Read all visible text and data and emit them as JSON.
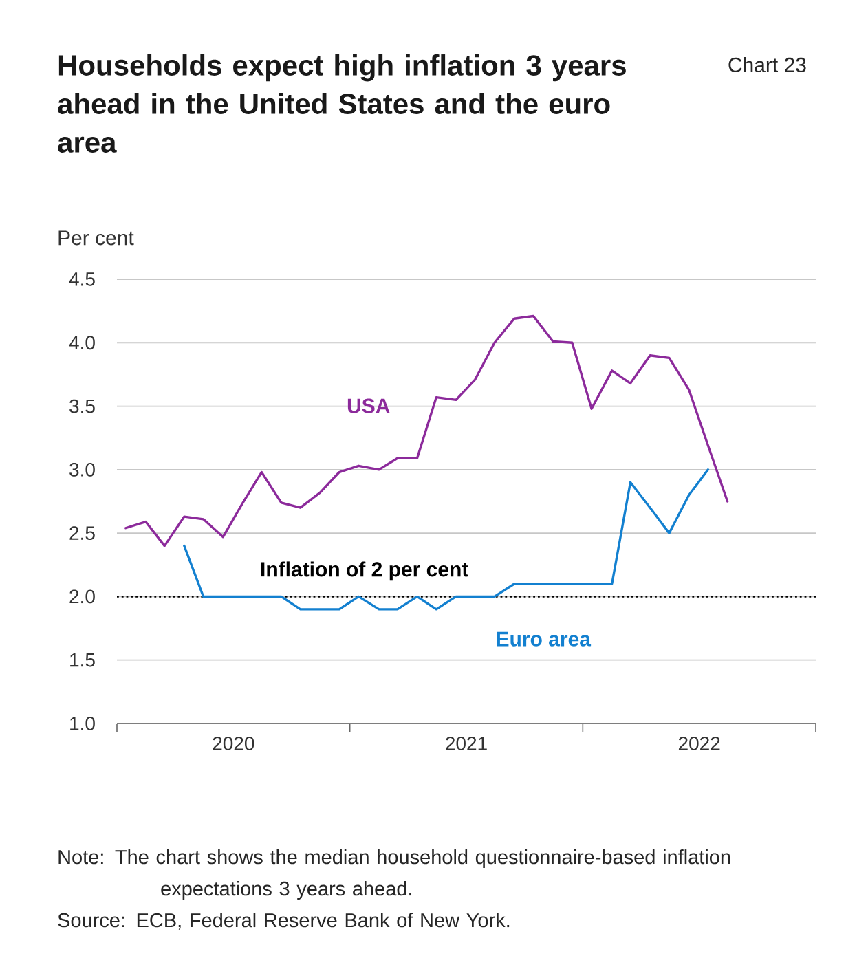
{
  "chart_data": {
    "type": "line",
    "title": "Households expect high inflation 3 years ahead in the United States and the euro area",
    "subtitle": "Chart 23",
    "ylabel": "Per cent",
    "series": [
      {
        "name": "USA",
        "color": "#8c2a9b",
        "x": [
          "2020-01-15",
          "2020-02-15",
          "2020-03-15",
          "2020-04-15",
          "2020-05-15",
          "2020-06-15",
          "2020-07-15",
          "2020-08-15",
          "2020-09-15",
          "2020-10-15",
          "2020-11-15",
          "2020-12-15",
          "2021-01-15",
          "2021-02-15",
          "2021-03-15",
          "2021-04-15",
          "2021-05-15",
          "2021-06-15",
          "2021-07-15",
          "2021-08-15",
          "2021-09-15",
          "2021-10-15",
          "2021-11-15",
          "2021-12-15",
          "2022-01-15",
          "2022-02-15",
          "2022-03-15",
          "2022-04-15",
          "2022-05-15",
          "2022-06-15",
          "2022-07-15",
          "2022-08-15"
        ],
        "values": [
          2.54,
          2.59,
          2.4,
          2.63,
          2.61,
          2.47,
          2.73,
          2.98,
          2.74,
          2.7,
          2.82,
          2.98,
          3.03,
          3.0,
          3.09,
          3.09,
          3.57,
          3.55,
          3.71,
          4.0,
          4.19,
          4.21,
          4.01,
          4.0,
          3.48,
          3.78,
          3.68,
          3.9,
          3.88,
          3.63,
          3.19,
          2.75
        ]
      },
      {
        "name": "Euro area",
        "color": "#1380d0",
        "x": [
          "2020-04-15",
          "2020-05-15",
          "2020-06-15",
          "2020-07-15",
          "2020-08-15",
          "2020-09-15",
          "2020-10-15",
          "2020-11-15",
          "2020-12-15",
          "2021-01-15",
          "2021-02-15",
          "2021-03-15",
          "2021-04-15",
          "2021-05-15",
          "2021-06-15",
          "2021-07-15",
          "2021-08-15",
          "2021-09-15",
          "2021-10-15",
          "2021-11-15",
          "2021-12-15",
          "2022-01-15",
          "2022-02-15",
          "2022-03-15",
          "2022-04-15",
          "2022-05-15",
          "2022-06-15",
          "2022-07-15"
        ],
        "values": [
          2.4,
          2.0,
          2.0,
          2.0,
          2.0,
          2.0,
          1.9,
          1.9,
          1.9,
          2.0,
          1.9,
          1.9,
          2.0,
          1.9,
          2.0,
          2.0,
          2.0,
          2.1,
          2.1,
          2.1,
          2.1,
          2.1,
          2.1,
          2.9,
          2.7,
          2.5,
          2.8,
          3.0
        ]
      }
    ],
    "xlim": [
      "2020-01-01",
      "2023-01-01"
    ],
    "xticks": [
      {
        "value": "2020-01-01",
        "label": null
      },
      {
        "value": "2021-01-01",
        "label": null
      },
      {
        "value": "2022-01-01",
        "label": null
      },
      {
        "value": "2023-01-01",
        "label": null
      },
      {
        "value": "2020-07-01",
        "label": "2020"
      },
      {
        "value": "2021-07-01",
        "label": "2021"
      },
      {
        "value": "2022-07-01",
        "label": "2022"
      }
    ],
    "ylim": [
      1.0,
      4.5
    ],
    "yticks": [
      {
        "value": 1.0,
        "label": "1.0"
      },
      {
        "value": 1.5,
        "label": "1.5"
      },
      {
        "value": 2.0,
        "label": "2.0"
      },
      {
        "value": 2.5,
        "label": "2.5"
      },
      {
        "value": 3.0,
        "label": "3.0"
      },
      {
        "value": 3.5,
        "label": "3.5"
      },
      {
        "value": 4.0,
        "label": "4.0"
      },
      {
        "value": 4.5,
        "label": "4.5"
      }
    ],
    "grid": "y",
    "ref_lines": [
      {
        "axis": "y",
        "value": 2.0,
        "label": "Inflation of 2 per cent",
        "color": "#000000",
        "line_style": "dotted"
      }
    ],
    "annotations": [
      "Note: The chart shows the median household questionnaire-based inflation expectations 3 years ahead.",
      "Source: ECB, Federal Reserve Bank of New York."
    ]
  }
}
